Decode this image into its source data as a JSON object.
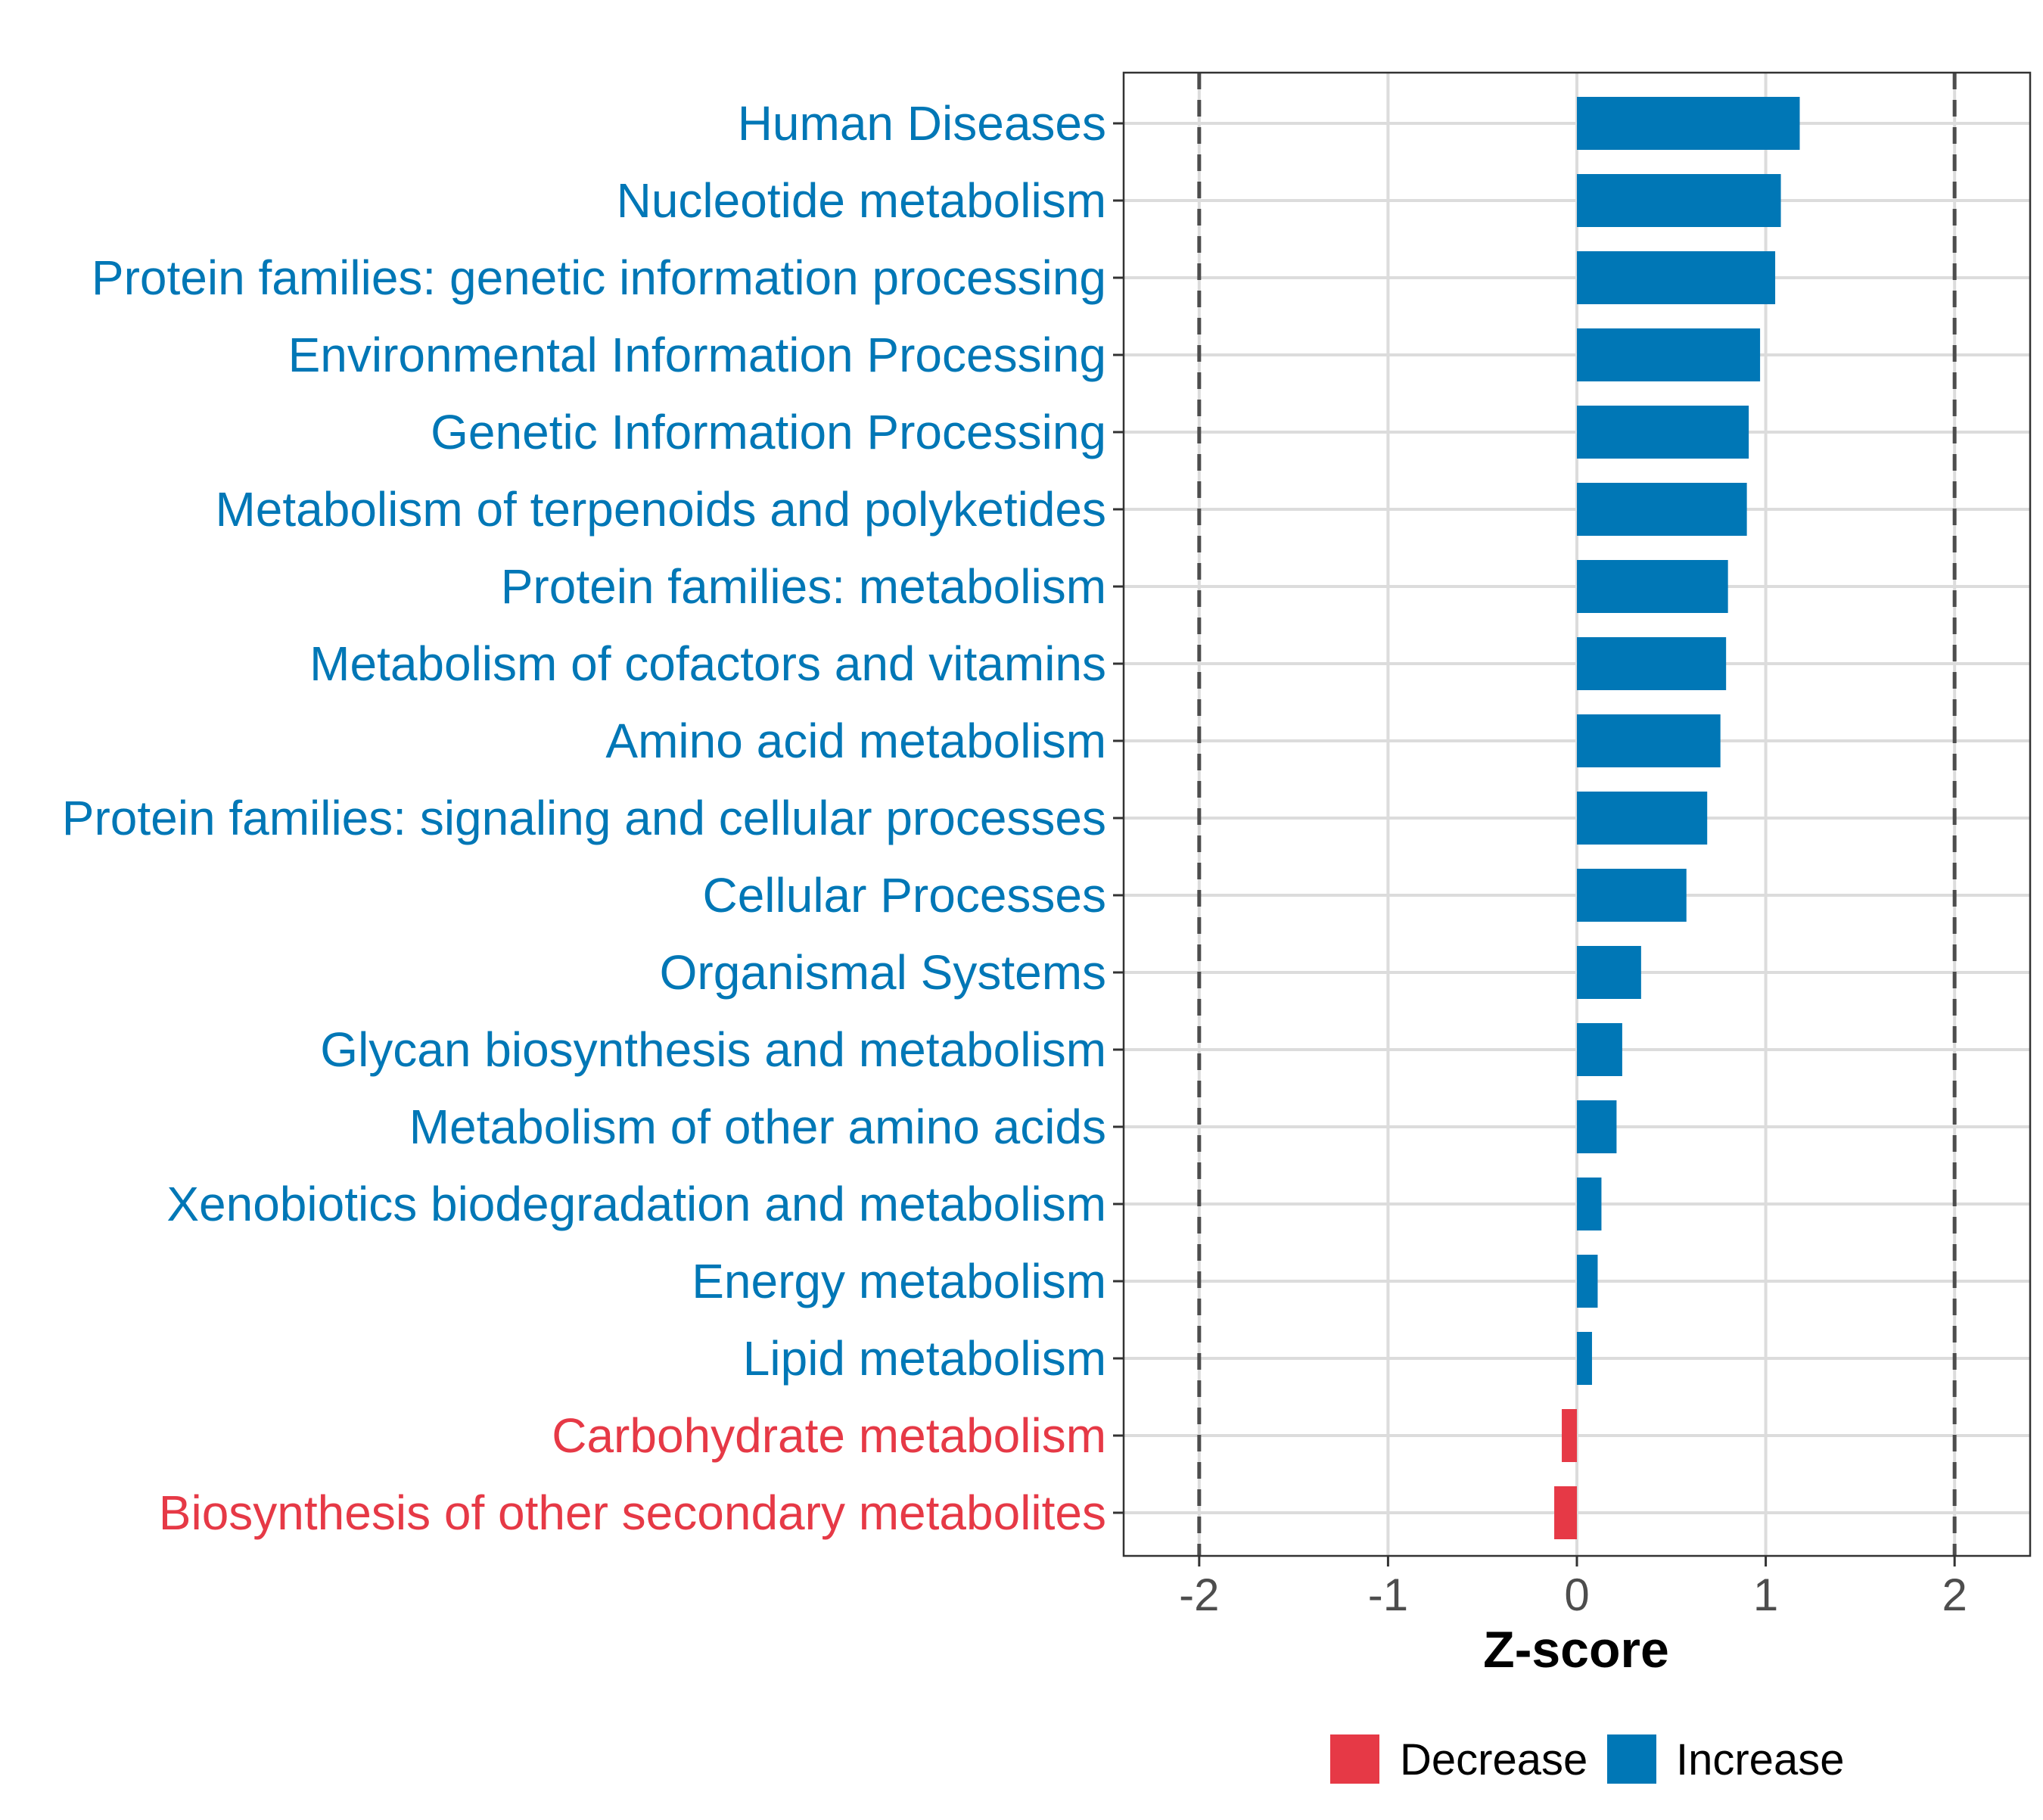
{
  "chart_data": {
    "type": "bar",
    "orientation": "horizontal",
    "title": "",
    "xlabel": "Z-score",
    "ylabel": "",
    "xlim": [
      -2.4,
      2.4
    ],
    "xticks": [
      -2,
      -1,
      0,
      1,
      2
    ],
    "xtick_labels": [
      "-2",
      "-1",
      "0",
      "1",
      "2"
    ],
    "reference_lines": [
      -2,
      2
    ],
    "grid": true,
    "legend_position": "bottom",
    "colors": {
      "Decrease": "#e63946",
      "Increase": "#0077b6"
    },
    "legend": [
      {
        "label": "Decrease",
        "color": "#e63946"
      },
      {
        "label": "Increase",
        "color": "#0077b6"
      }
    ],
    "categories": [
      "Human Diseases",
      "Nucleotide metabolism",
      "Protein families: genetic information processing",
      "Environmental Information Processing",
      "Genetic Information Processing",
      "Metabolism of terpenoids and polyketides",
      "Protein families: metabolism",
      "Metabolism of cofactors and vitamins",
      "Amino acid metabolism",
      "Protein families: signaling and cellular processes",
      "Cellular Processes",
      "Organismal Systems",
      "Glycan biosynthesis and metabolism",
      "Metabolism of other amino acids",
      "Xenobiotics biodegradation and metabolism",
      "Energy metabolism",
      "Lipid metabolism",
      "Carbohydrate metabolism",
      "Biosynthesis of other secondary metabolites"
    ],
    "values": [
      1.18,
      1.08,
      1.05,
      0.97,
      0.91,
      0.9,
      0.8,
      0.79,
      0.76,
      0.69,
      0.58,
      0.34,
      0.24,
      0.21,
      0.13,
      0.11,
      0.08,
      -0.08,
      -0.12
    ],
    "groups": [
      "Increase",
      "Increase",
      "Increase",
      "Increase",
      "Increase",
      "Increase",
      "Increase",
      "Increase",
      "Increase",
      "Increase",
      "Increase",
      "Increase",
      "Increase",
      "Increase",
      "Increase",
      "Increase",
      "Increase",
      "Decrease",
      "Decrease"
    ]
  }
}
